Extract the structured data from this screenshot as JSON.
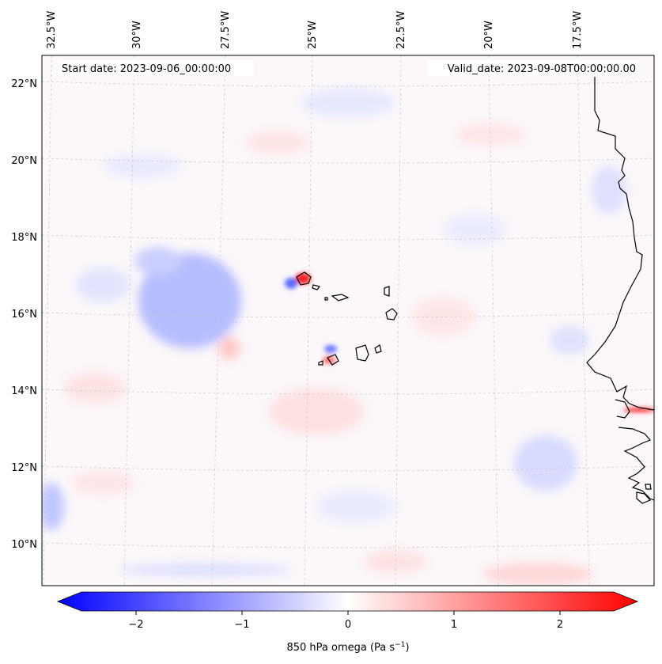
{
  "map": {
    "start_label": "Start date: 2023-09-06_00:00:00",
    "valid_label": "Valid_date: 2023-09-08T00:00:00.00",
    "lon_labels": [
      "32.5°W",
      "30°W",
      "27.5°W",
      "25°W",
      "22.5°W",
      "20°W",
      "17.5°W"
    ],
    "lat_labels": [
      "22°N",
      "20°N",
      "18°N",
      "16°N",
      "14°N",
      "12°N",
      "10°N"
    ],
    "colorbar": {
      "ticks": [
        "−2",
        "−1",
        "0",
        "1",
        "2"
      ],
      "label": "850 hPa omega (Pa s",
      "label_sup": "−1",
      "label_close": ")",
      "vmin": -2.5,
      "vmax": 2.5,
      "min_color": "#0000ff",
      "mid_color": "#ffffff",
      "max_color": "#ff0000"
    },
    "colors": {
      "coastline": "#000000",
      "gridline": "#c8c8c8",
      "background_field": "#fbf7fa"
    }
  }
}
